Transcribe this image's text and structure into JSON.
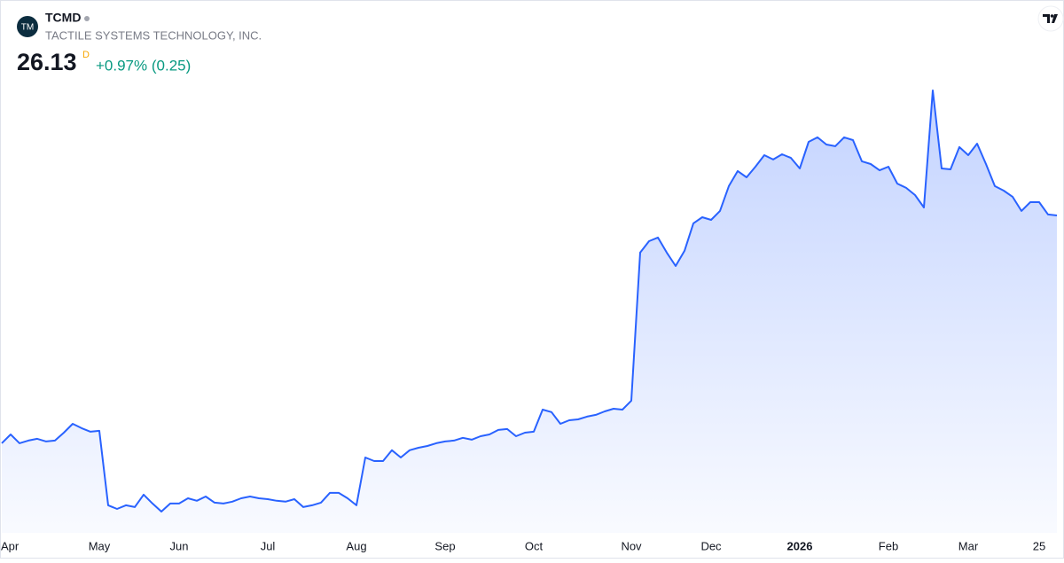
{
  "header": {
    "logo": "TM",
    "ticker": "TCMD",
    "company": "TACTILE SYSTEMS TECHNOLOGY, INC.",
    "price": "26.13",
    "interval": "D",
    "change": "+0.97% (0.25)"
  },
  "chart_data": {
    "type": "area",
    "color": "#2962ff",
    "categories": [
      null,
      "Apr",
      null,
      null,
      null,
      null,
      null,
      null,
      null,
      null,
      null,
      "May",
      null,
      null,
      null,
      null,
      null,
      null,
      null,
      null,
      "Jun",
      null,
      null,
      null,
      null,
      null,
      null,
      null,
      null,
      null,
      "Jul",
      null,
      null,
      null,
      null,
      null,
      null,
      null,
      null,
      null,
      "Aug",
      null,
      null,
      null,
      null,
      null,
      null,
      null,
      null,
      null,
      "Sep",
      null,
      null,
      null,
      null,
      null,
      null,
      null,
      null,
      null,
      "Oct",
      null,
      null,
      null,
      null,
      null,
      null,
      null,
      null,
      null,
      null,
      "Nov",
      null,
      null,
      null,
      null,
      null,
      null,
      null,
      null,
      "Dec",
      null,
      null,
      null,
      null,
      null,
      null,
      null,
      null,
      null,
      "2026",
      null,
      null,
      null,
      null,
      null,
      null,
      null,
      null,
      null,
      "Feb",
      null,
      null,
      null,
      null,
      null,
      null,
      null,
      null,
      "Mar",
      null,
      null,
      null,
      null,
      null,
      null,
      null,
      "25",
      null,
      null
    ],
    "values": [
      13.46,
      13.95,
      13.46,
      13.61,
      13.71,
      13.56,
      13.61,
      14.05,
      14.54,
      14.3,
      14.1,
      14.15,
      10.01,
      9.81,
      10.01,
      9.91,
      10.6,
      10.11,
      9.66,
      10.11,
      10.11,
      10.4,
      10.26,
      10.5,
      10.16,
      10.11,
      10.21,
      10.4,
      10.5,
      10.4,
      10.35,
      10.26,
      10.21,
      10.35,
      9.91,
      10.01,
      10.16,
      10.7,
      10.7,
      10.4,
      10.01,
      12.67,
      12.47,
      12.47,
      13.07,
      12.67,
      13.07,
      13.21,
      13.31,
      13.46,
      13.56,
      13.61,
      13.76,
      13.66,
      13.85,
      13.95,
      14.2,
      14.25,
      13.85,
      14.05,
      14.1,
      15.33,
      15.19,
      14.54,
      14.74,
      14.79,
      14.94,
      15.04,
      15.23,
      15.38,
      15.33,
      15.83,
      24.06,
      24.7,
      24.9,
      24.06,
      23.32,
      24.16,
      25.69,
      26.03,
      25.88,
      26.38,
      27.76,
      28.6,
      28.25,
      28.84,
      29.48,
      29.24,
      29.53,
      29.33,
      28.74,
      30.22,
      30.47,
      30.07,
      29.98,
      30.47,
      30.32,
      29.14,
      28.99,
      28.64,
      28.84,
      27.9,
      27.66,
      27.26,
      26.57,
      33.08,
      28.74,
      28.69,
      29.93,
      29.48,
      30.12,
      28.99,
      27.76,
      27.51,
      27.17,
      26.38,
      26.87,
      26.87,
      26.18,
      26.13
    ]
  }
}
